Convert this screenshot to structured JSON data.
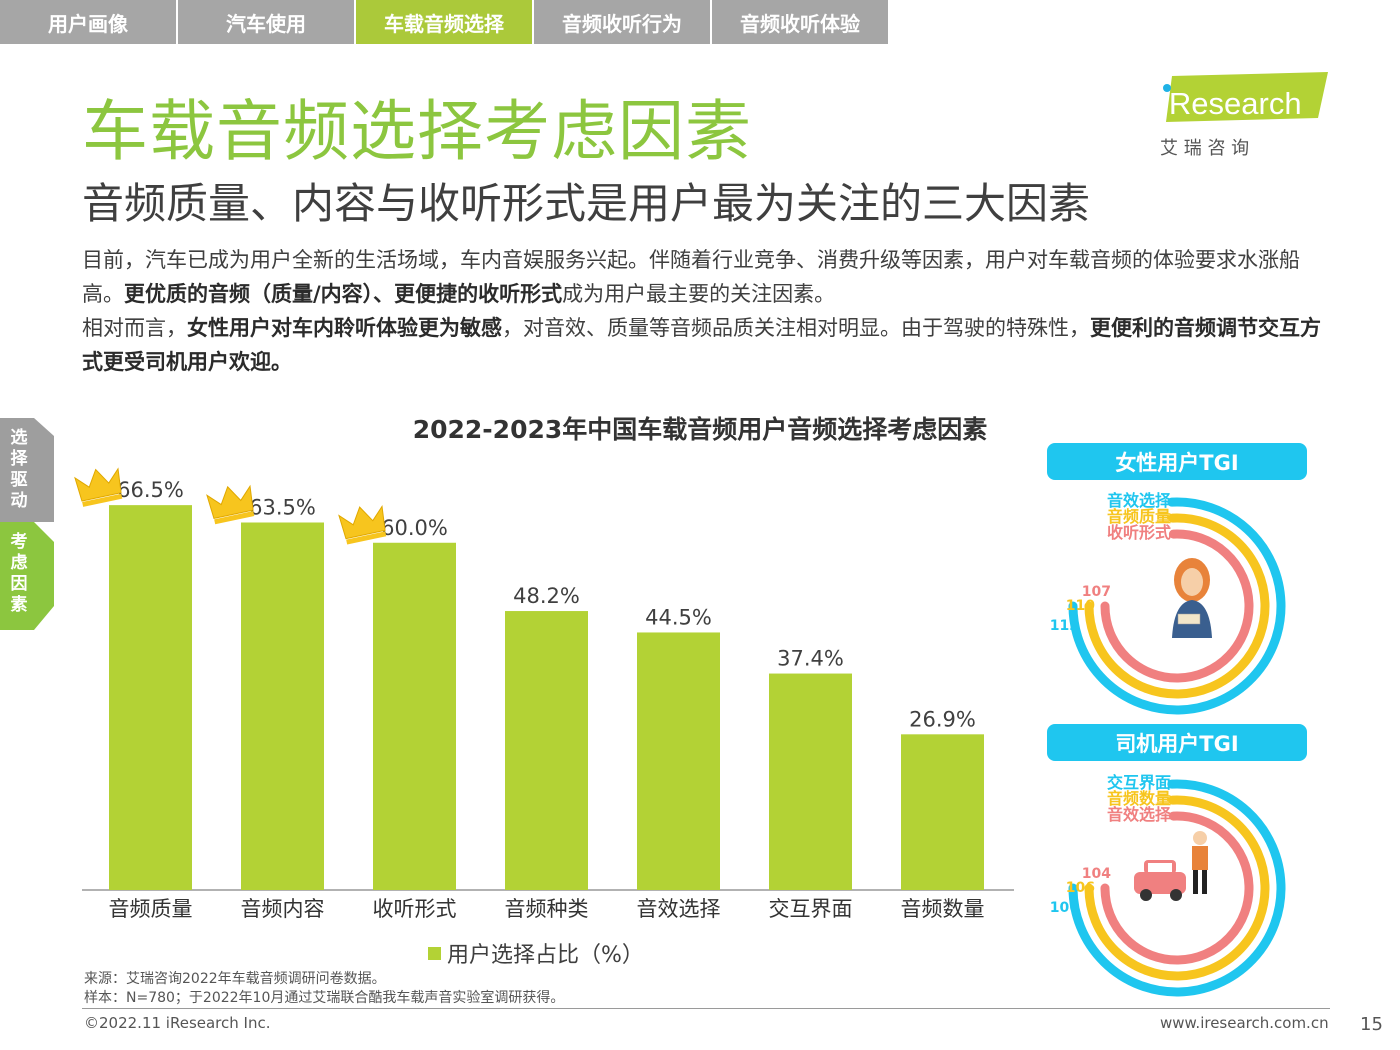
{
  "nav": {
    "tabs": [
      {
        "label": "用户画像",
        "active": false
      },
      {
        "label": "汽车使用",
        "active": false
      },
      {
        "label": "车载音频选择",
        "active": true
      },
      {
        "label": "音频收听行为",
        "active": false
      },
      {
        "label": "音频收听体验",
        "active": false
      }
    ]
  },
  "logo": {
    "name": "iResearch",
    "sub": "艾 瑞 咨 询"
  },
  "page": {
    "title": "车载音频选择考虑因素",
    "subtitle": "音频质量、内容与收听形式是用户最为关注的三大因素",
    "p1_a": "目前，汽车已成为用户全新的生活场域，车内音娱服务兴起。伴随着行业竞争、消费升级等因素，用户对车载音频的体验要求水涨船高。",
    "p1_b": "更优质的音频（质量/内容）、更便捷的收听形式",
    "p1_c": "成为用户最主要的关注因素。",
    "p2_a": "相对而言，",
    "p2_b": "女性用户对车内聆听体验更为敏感",
    "p2_c": "，对音效、质量等音频品质关注相对明显。由于驾驶的特殊性，",
    "p2_d": "更便利的音频调节交互方式更受司机用户欢迎。"
  },
  "side_tabs": {
    "tab1": "选择驱动",
    "tab2": "考虑因素"
  },
  "chart_data": {
    "type": "bar",
    "title": "2022-2023年中国车载音频用户音频选择考虑因素",
    "categories": [
      "音频质量",
      "音频内容",
      "收听形式",
      "音频种类",
      "音效选择",
      "交互界面",
      "音频数量"
    ],
    "series": [
      {
        "name": "用户选择占比（%）",
        "values": [
          66.5,
          63.5,
          60.0,
          48.2,
          44.5,
          37.4,
          26.9
        ]
      }
    ],
    "labels": [
      "66.5%",
      "63.5%",
      "60.0%",
      "48.2%",
      "44.5%",
      "37.4%",
      "26.9%"
    ],
    "crowned": [
      0,
      1,
      2
    ],
    "ylim": [
      0,
      70
    ],
    "color": "#b3d235"
  },
  "legend_label": "用户选择占比（%）",
  "tgi": [
    {
      "title": "女性用户TGI",
      "items": [
        {
          "label": "音效选择",
          "value": 112,
          "color": "#1fc6ef"
        },
        {
          "label": "音频质量",
          "value": 110,
          "color": "#f7c51e"
        },
        {
          "label": "收听形式",
          "value": 107,
          "color": "#f08080"
        }
      ]
    },
    {
      "title": "司机用户TGI",
      "items": [
        {
          "label": "交互界面",
          "value": 106,
          "color": "#1fc6ef"
        },
        {
          "label": "音频数量",
          "value": 106,
          "color": "#f7c51e"
        },
        {
          "label": "音效选择",
          "value": 104,
          "color": "#f08080"
        }
      ]
    }
  ],
  "source": {
    "line1": "来源：艾瑞咨询2022年车载音频调研问卷数据。",
    "line2": "样本：N=780；于2022年10月通过艾瑞联合酷我车载声音实验室调研获得。"
  },
  "footer": {
    "copyright": "©2022.11 iResearch Inc.",
    "url": "www.iresearch.com.cn",
    "page": "15"
  }
}
